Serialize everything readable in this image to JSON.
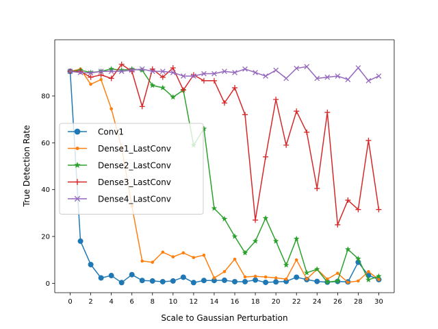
{
  "chart_data": {
    "type": "line",
    "title": "",
    "xlabel": "Scale to Gaussian Perturbation",
    "ylabel": "True Detection Rate",
    "xlim": [
      -1.5,
      31.5
    ],
    "ylim": [
      -4,
      104
    ],
    "xticks": [
      0,
      2,
      4,
      6,
      8,
      10,
      12,
      14,
      16,
      18,
      20,
      22,
      24,
      26,
      28,
      30
    ],
    "yticks": [
      0,
      20,
      40,
      60,
      80
    ],
    "grid": false,
    "legend_position": "center-left",
    "x": [
      0,
      1,
      2,
      3,
      4,
      5,
      6,
      7,
      8,
      9,
      10,
      11,
      12,
      13,
      14,
      15,
      16,
      17,
      18,
      19,
      20,
      21,
      22,
      23,
      24,
      25,
      26,
      27,
      28,
      29,
      30
    ],
    "series": [
      {
        "name": "Conv1",
        "color": "#1f77b4",
        "marker": "circle",
        "values": [
          90.5,
          18,
          8,
          2.3,
          3.3,
          0.3,
          3.7,
          1.2,
          1,
          0.7,
          1,
          2.6,
          0.3,
          1.2,
          1.2,
          1.3,
          0.7,
          0.7,
          1.4,
          0.4,
          0.6,
          0.8,
          2.6,
          1.6,
          0.8,
          0.5,
          0.8,
          0.6,
          9,
          3.4,
          1.6
        ]
      },
      {
        "name": "Dense1_LastConv",
        "color": "#ff7f0e",
        "marker": "dot",
        "values": [
          90.5,
          91.5,
          85,
          87,
          74.5,
          58,
          33,
          9.5,
          9,
          13.3,
          11.3,
          13,
          11,
          12,
          2.3,
          5,
          10.3,
          2.7,
          3,
          2.7,
          2.3,
          1.8,
          10,
          1.8,
          6,
          1.8,
          4.3,
          0.4,
          1,
          5,
          1.6
        ]
      },
      {
        "name": "Dense2_LastConv",
        "color": "#2ca02c",
        "marker": "star",
        "values": [
          90.5,
          91,
          90,
          90.5,
          91.5,
          91,
          91.5,
          91,
          84.5,
          83.5,
          79.5,
          82.5,
          59,
          66,
          32,
          27.5,
          20,
          13,
          18,
          27.8,
          18,
          7.8,
          19,
          4.5,
          6,
          0.5,
          1,
          14.5,
          10.5,
          1.5,
          3
        ]
      },
      {
        "name": "Dense3_LastConv",
        "color": "#d62728",
        "marker": "plus",
        "values": [
          90.5,
          90.5,
          88,
          89,
          87.5,
          93.5,
          90.5,
          75.5,
          91.5,
          88,
          92,
          82.5,
          89,
          86.5,
          86.5,
          77,
          83.5,
          72,
          27,
          54,
          78.5,
          59,
          73.5,
          64.5,
          40.5,
          73,
          25,
          35.5,
          31.5,
          61,
          31.5
        ]
      },
      {
        "name": "Dense4_LastConv",
        "color": "#9467bd",
        "marker": "x",
        "values": [
          90.5,
          90,
          89.8,
          90.5,
          90.5,
          90.5,
          91,
          91.5,
          90.5,
          90.5,
          90,
          88.5,
          88.5,
          89.5,
          89.5,
          90.5,
          90,
          91.5,
          90,
          88.5,
          91,
          87.5,
          91.8,
          92.5,
          87.5,
          88,
          88.5,
          87,
          92,
          86.5,
          88.5
        ]
      }
    ]
  }
}
